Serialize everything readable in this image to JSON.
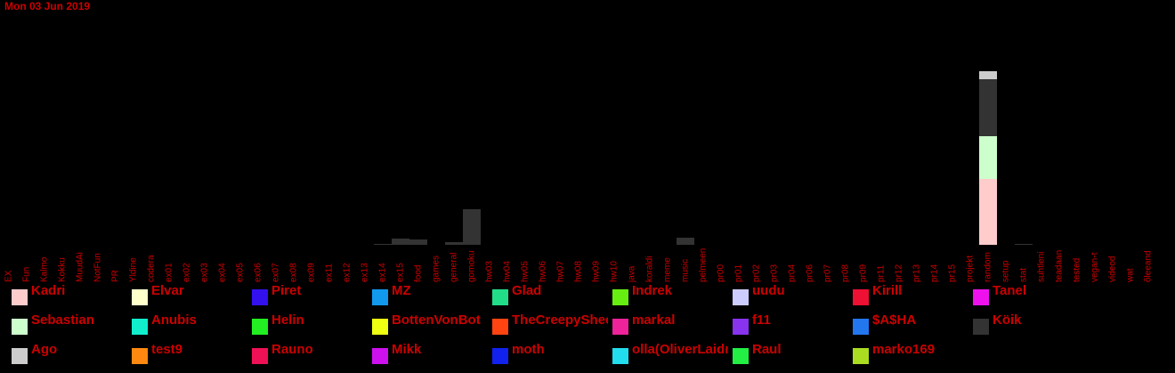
{
  "date": "Mon 03 Jun 2019",
  "chart_data": {
    "type": "bar",
    "stacked": true,
    "categories": [
      "EX",
      "Fun",
      "Kalmo",
      "Kokku",
      "MuudAi",
      "NotFun",
      "PR",
      "Yldine",
      "codera",
      "ex01",
      "ex02",
      "ex03",
      "ex04",
      "ex05",
      "ex06",
      "ex07",
      "ex08",
      "ex09",
      "ex11",
      "ex12",
      "ex13",
      "ex14",
      "ex15",
      "food",
      "games",
      "general",
      "gomoku",
      "hw03",
      "hw04",
      "hw05",
      "hw06",
      "hw07",
      "hw08",
      "hw09",
      "hw10",
      "java",
      "koraldi",
      "meme",
      "music",
      "pelmeen",
      "pr00",
      "pr01",
      "pr02",
      "pr03",
      "pr04",
      "pr06",
      "pr07",
      "pr08",
      "pr09",
      "pr11",
      "pr12",
      "pr13",
      "pr14",
      "pr15",
      "projekt",
      "random",
      "setup",
      "stat",
      "suhtleni",
      "teadaan",
      "tested",
      "vegan-t",
      "videod",
      "wat",
      "õleeand"
    ],
    "grid": false,
    "legend_placement": "bottom",
    "series": [
      {
        "name": "Kadri",
        "color": "#ffcccc",
        "values": {
          "random": 74
        }
      },
      {
        "name": "Elvar",
        "color": "#ffffcc",
        "values": {}
      },
      {
        "name": "Piret",
        "color": "#3311ee",
        "values": {}
      },
      {
        "name": "MZ",
        "color": "#1199ee",
        "values": {}
      },
      {
        "name": "Glad",
        "color": "#22dd88",
        "values": {}
      },
      {
        "name": "Indrek",
        "color": "#66ee11",
        "values": {}
      },
      {
        "name": "uudu",
        "color": "#ccccff",
        "values": {}
      },
      {
        "name": "Kirill",
        "color": "#ee1133",
        "values": {}
      },
      {
        "name": "Tanel",
        "color": "#ee11ee",
        "values": {}
      },
      {
        "name": "Sebastian",
        "color": "#ccffcc",
        "values": {
          "random": 48
        }
      },
      {
        "name": "Anubis",
        "color": "#11eecc",
        "values": {}
      },
      {
        "name": "Helin",
        "color": "#22ee22",
        "values": {}
      },
      {
        "name": "BottenVonBot",
        "color": "#eeff11",
        "values": {}
      },
      {
        "name": "TheCreepySheep",
        "color": "#ff4411",
        "values": {}
      },
      {
        "name": "markal",
        "color": "#ee2299",
        "values": {}
      },
      {
        "name": "f11",
        "color": "#8833ee",
        "values": {}
      },
      {
        "name": "$A$HA",
        "color": "#2277ee",
        "values": {}
      },
      {
        "name": "Köik",
        "color": "#333333",
        "values": {
          "ex14": 1,
          "ex15": 7,
          "food": 6,
          "general": 3,
          "gomoku": 40,
          "music": 8,
          "random": 64,
          "stat": 1
        }
      },
      {
        "name": "Ago",
        "color": "#cccccc",
        "values": {
          "random": 9
        }
      },
      {
        "name": "test9",
        "color": "#ff8811",
        "values": {}
      },
      {
        "name": "Rauno",
        "color": "#ee1155",
        "values": {}
      },
      {
        "name": "Mikk",
        "color": "#cc11ee",
        "values": {}
      },
      {
        "name": "moth",
        "color": "#1122ee",
        "values": {}
      },
      {
        "name": "olla(OliverLaidna)",
        "color": "#22ddee",
        "values": {}
      },
      {
        "name": "Raul",
        "color": "#22ee44",
        "values": {}
      },
      {
        "name": "marko169",
        "color": "#aadd22",
        "values": {}
      }
    ]
  }
}
